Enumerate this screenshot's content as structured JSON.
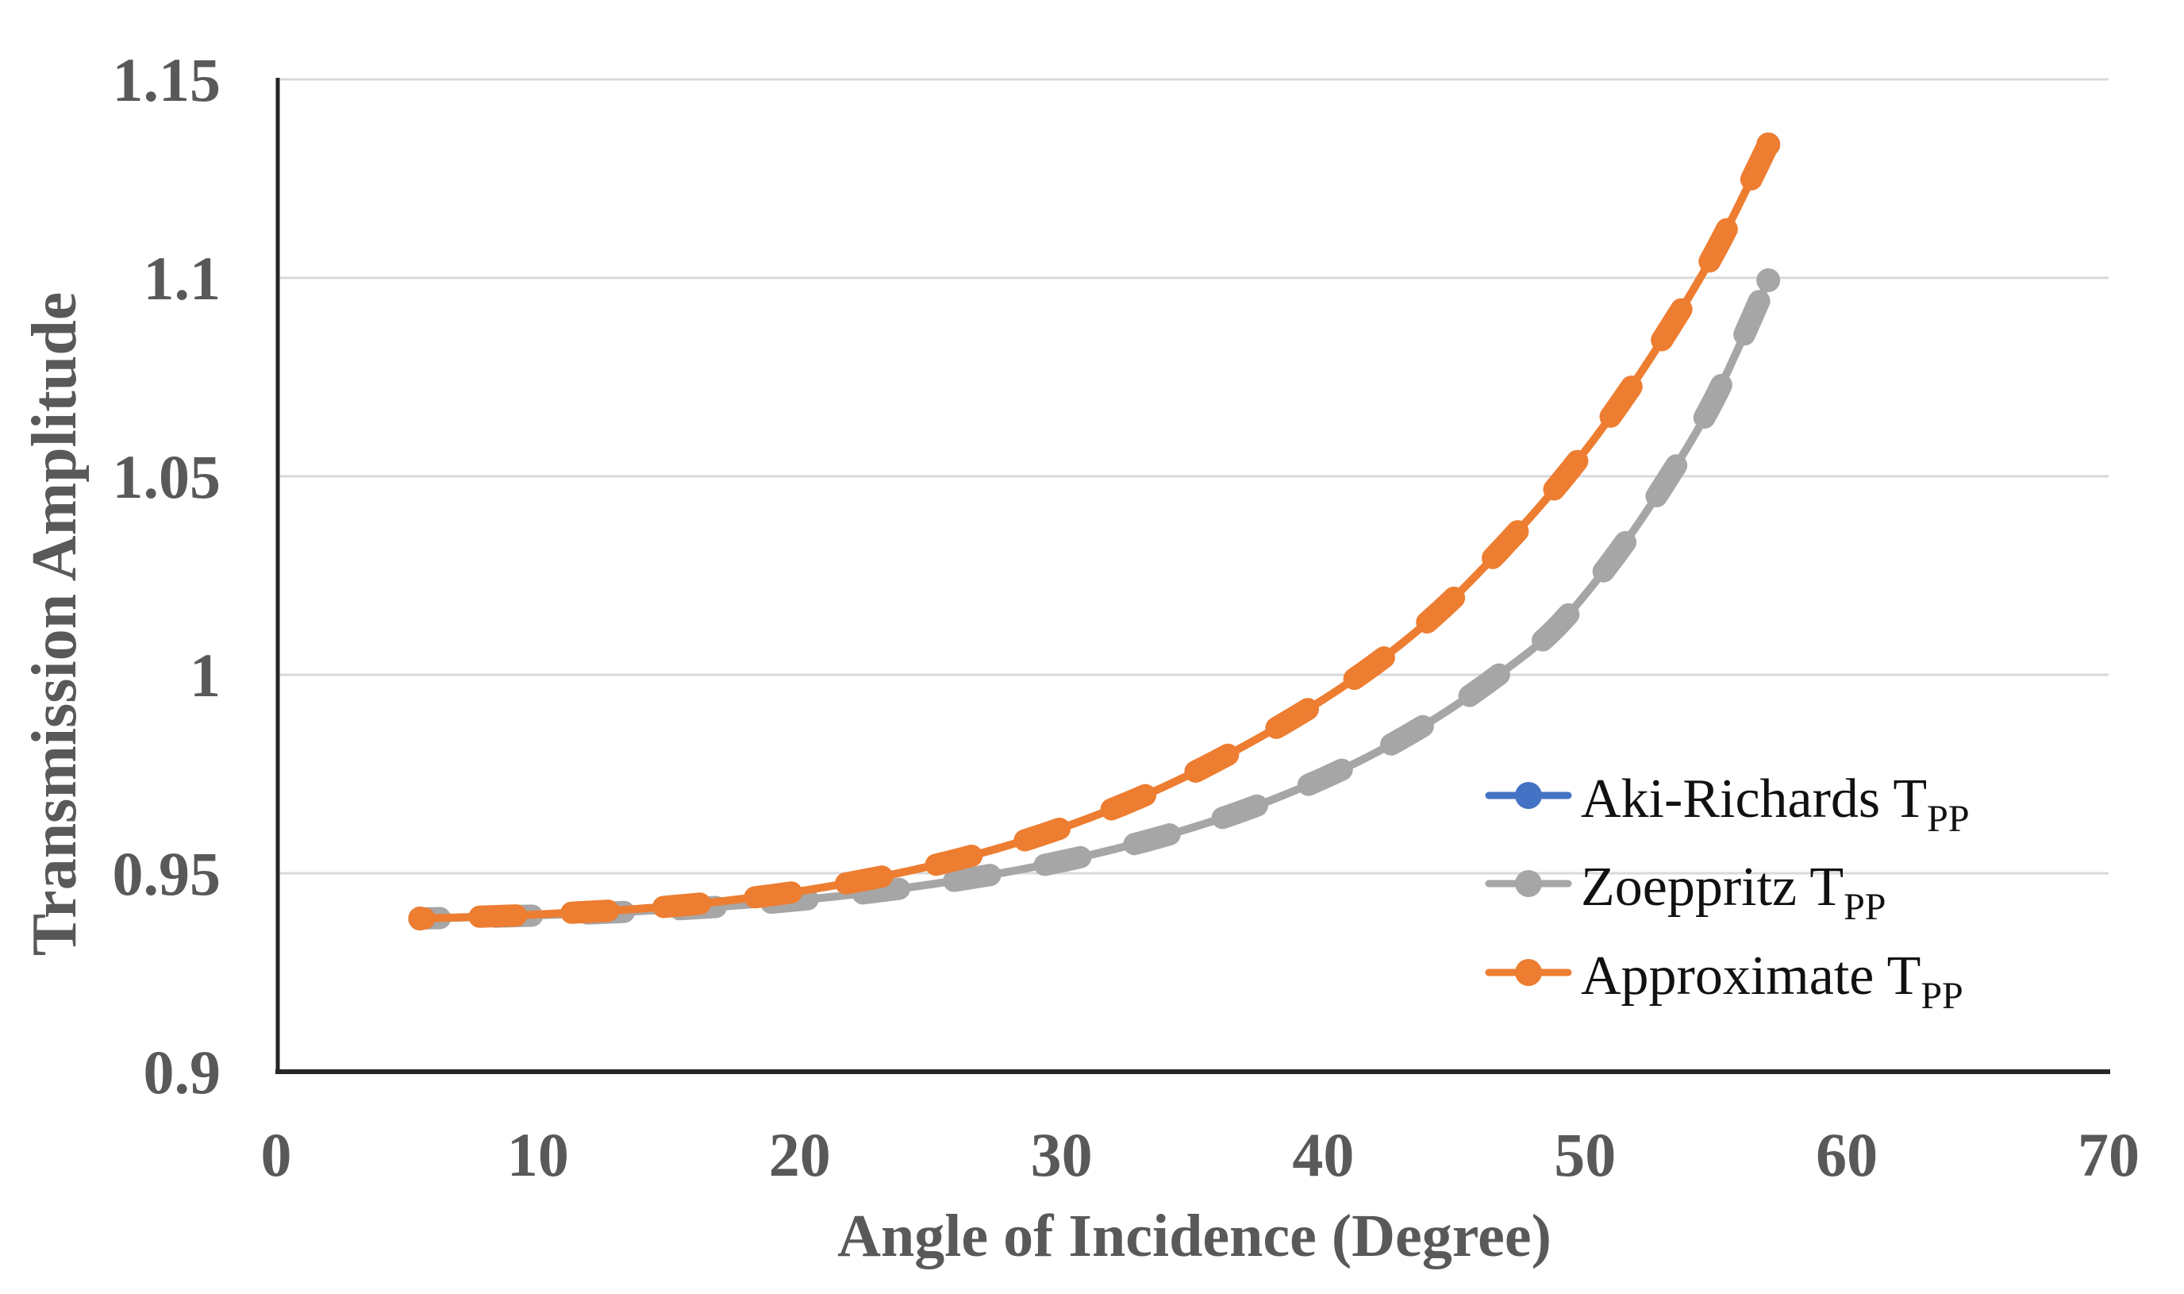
{
  "figure": {
    "background": "#FFFFFF",
    "text_color": "#595959",
    "legend_text_color": "#111111",
    "gridline_color": "#D9D9D9",
    "axis_line_color": "#262626"
  },
  "chart_data": {
    "type": "line",
    "title": "",
    "xlabel": "Angle of Incidence (Degree)",
    "ylabel": "Transmission Amplitude",
    "xlim": [
      0,
      70
    ],
    "ylim": [
      0.9,
      1.15
    ],
    "xticks": [
      0,
      10,
      20,
      30,
      40,
      50,
      60,
      70
    ],
    "yticks": [
      0.9,
      0.95,
      1,
      1.05,
      1.1,
      1.15
    ],
    "ytick_labels": [
      "0.9",
      "0.95",
      "1",
      "1.05",
      "1.1",
      "1.15"
    ],
    "grid": "horizontal",
    "legend_position": "inside-right",
    "marker_style": "dash",
    "x": [
      5.5,
      7.56,
      9.62,
      11.68,
      13.74,
      15.8,
      17.86,
      19.92,
      21.98,
      24.04,
      26.1,
      28.16,
      30.22,
      32.28,
      34.34,
      36.4,
      38.46,
      40.52,
      42.58,
      44.64,
      46.7,
      48.76,
      50.82,
      52.88,
      54.94,
      57.0
    ],
    "series": [
      {
        "id": "aki-richards",
        "name": "Aki-Richards TPP",
        "legend_main": "Aki-Richards T",
        "legend_sub": "PP",
        "color": "#4472C4",
        "note": "coincides with Approximate TPP curve (hidden underneath orange)",
        "values": [
          0.9386,
          0.939,
          0.9395,
          0.9402,
          0.941,
          0.9421,
          0.9436,
          0.9454,
          0.9477,
          0.9504,
          0.9536,
          0.9574,
          0.9619,
          0.9671,
          0.9731,
          0.98,
          0.9876,
          0.996,
          1.0057,
          1.0172,
          1.031,
          1.0462,
          1.0636,
          1.0837,
          1.1063,
          1.1336
        ]
      },
      {
        "id": "zoeppritz",
        "name": "Zoeppritz TPP",
        "legend_main": "Zoeppritz T",
        "legend_sub": "PP",
        "color": "#A6A6A6",
        "values": [
          0.9386,
          0.9389,
          0.9393,
          0.9398,
          0.9404,
          0.9411,
          0.942,
          0.9432,
          0.9446,
          0.9463,
          0.9483,
          0.9506,
          0.9533,
          0.9565,
          0.9602,
          0.9645,
          0.9696,
          0.9755,
          0.9824,
          0.9905,
          1.0,
          1.011,
          1.027,
          1.0465,
          1.0695,
          1.0994
        ]
      },
      {
        "id": "approximate",
        "name": "Approximate TPP",
        "legend_main": "Approximate T",
        "legend_sub": "PP",
        "color": "#ED7D31",
        "values": [
          0.9386,
          0.939,
          0.9395,
          0.9402,
          0.941,
          0.9421,
          0.9436,
          0.9454,
          0.9477,
          0.9504,
          0.9536,
          0.9574,
          0.9619,
          0.9671,
          0.9731,
          0.98,
          0.9876,
          0.996,
          1.0057,
          1.0172,
          1.031,
          1.0462,
          1.0636,
          1.0837,
          1.1063,
          1.1336
        ]
      }
    ]
  }
}
